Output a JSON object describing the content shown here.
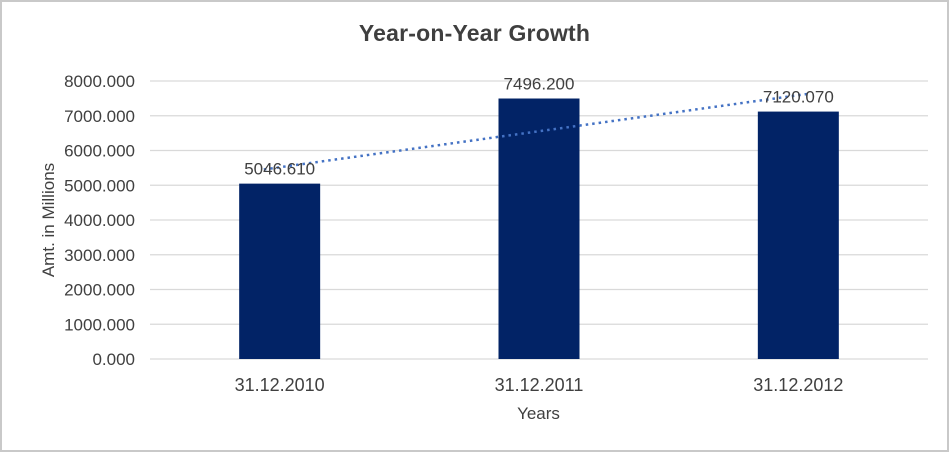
{
  "window": {
    "background": "#ffffff",
    "border_color": "#c9c9c9"
  },
  "chart_data": {
    "type": "bar",
    "title": "Year-on-Year Growth",
    "xlabel": "Years",
    "ylabel": "Amt. in Millions",
    "categories": [
      "31.12.2010",
      "31.12.2011",
      "31.12.2012"
    ],
    "values": [
      5046.61,
      7496.2,
      7120.07
    ],
    "data_labels": [
      "5046.610",
      "7496.200",
      "7120.070"
    ],
    "ylim": [
      0,
      8000
    ],
    "ytick_step": 1000,
    "ytick_labels": [
      "0.000",
      "1000.000",
      "2000.000",
      "3000.000",
      "4000.000",
      "5000.000",
      "6000.000",
      "7000.000",
      "8000.000"
    ],
    "grid": "horizontal",
    "legend": "none",
    "trendline": {
      "type": "linear",
      "style": "dotted",
      "color": "#4472c4"
    },
    "colors": {
      "bar": "#022366",
      "gridline": "#d9d9d9",
      "axis_text": "#404040",
      "data_label_text": "#404040",
      "title_text": "#3f3f3f"
    }
  }
}
